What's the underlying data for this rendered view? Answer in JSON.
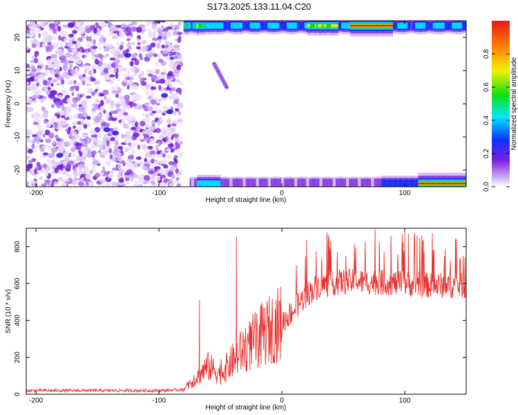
{
  "title": "S173.2025.133.11.04.C20",
  "colors": {
    "snr_line": "#e8302c",
    "colormap": [
      "#ffffff",
      "#7b1fe0",
      "#1030ff",
      "#00e8ff",
      "#10e010",
      "#f0f000",
      "#ff9000",
      "#e81818"
    ]
  },
  "chart_data": [
    {
      "type": "heatmap",
      "xlabel": "Height of straight line (km)",
      "ylabel": "Frequency (Hz)",
      "xlim": [
        -208,
        150
      ],
      "ylim": [
        -25,
        25
      ],
      "x_ticks": [
        -200,
        -100,
        0,
        100
      ],
      "x_tick_labels": [
        "-200",
        "-100",
        "0",
        "100"
      ],
      "y_ticks": [
        -20,
        -10,
        0,
        10,
        20
      ],
      "y_tick_labels": [
        "-20",
        "-10",
        "0",
        "10",
        "20"
      ],
      "colorbar": {
        "label": "Normalized spectral amplitude",
        "range": [
          0,
          1
        ],
        "ticks": [
          0.0,
          0.2,
          0.4,
          0.6,
          0.8
        ],
        "tick_labels": [
          "0.0",
          "0.2",
          "0.4",
          "0.6",
          "0.8"
        ]
      },
      "regions": [
        {
          "name": "diffuse noise",
          "x_range": [
            -208,
            -82
          ],
          "y_range": [
            -25,
            25
          ],
          "amplitude": 0.08
        },
        {
          "name": "upper band",
          "x_range": [
            -80,
            150
          ],
          "y_center": 23.5,
          "amplitude_peak": 0.95
        },
        {
          "name": "lower band",
          "x_range": [
            -75,
            150
          ],
          "y_center": -24,
          "amplitude_peak": 0.95
        },
        {
          "name": "descending streak",
          "x_range": [
            -55,
            -45
          ],
          "y_range": [
            12,
            5
          ],
          "amplitude": 0.15
        }
      ]
    },
    {
      "type": "line",
      "xlabel": "Height of straight line (km)",
      "ylabel": "SNR (10 * v/v)",
      "xlim": [
        -208,
        150
      ],
      "ylim": [
        0,
        900
      ],
      "x_ticks": [
        -200,
        -100,
        0,
        100
      ],
      "x_tick_labels": [
        "-200",
        "-100",
        "0",
        "100"
      ],
      "y_ticks": [
        0,
        200,
        400,
        600,
        800
      ],
      "y_tick_labels": [
        "0",
        "200",
        "400",
        "600",
        "800"
      ],
      "series": [
        {
          "values_profile": [
            {
              "x": -208,
              "y": 20
            },
            {
              "x": -150,
              "y": 20
            },
            {
              "x": -100,
              "y": 20
            },
            {
              "x": -80,
              "y": 25
            },
            {
              "x": -70,
              "y": 90
            },
            {
              "x": -60,
              "y": 150
            },
            {
              "x": -50,
              "y": 110
            },
            {
              "x": -40,
              "y": 180
            },
            {
              "x": -30,
              "y": 250
            },
            {
              "x": -20,
              "y": 300
            },
            {
              "x": -10,
              "y": 350
            },
            {
              "x": 0,
              "y": 390
            },
            {
              "x": 10,
              "y": 460
            },
            {
              "x": 20,
              "y": 540
            },
            {
              "x": 30,
              "y": 590
            },
            {
              "x": 50,
              "y": 610
            },
            {
              "x": 70,
              "y": 610
            },
            {
              "x": 100,
              "y": 600
            },
            {
              "x": 120,
              "y": 590
            },
            {
              "x": 150,
              "y": 590
            }
          ],
          "peaks": [
            {
              "x": -67,
              "y": 510
            },
            {
              "x": -37,
              "y": 855
            },
            {
              "x": 100,
              "y": 890
            },
            {
              "x": 103,
              "y": 870
            },
            {
              "x": 110,
              "y": 860
            }
          ]
        }
      ]
    }
  ]
}
